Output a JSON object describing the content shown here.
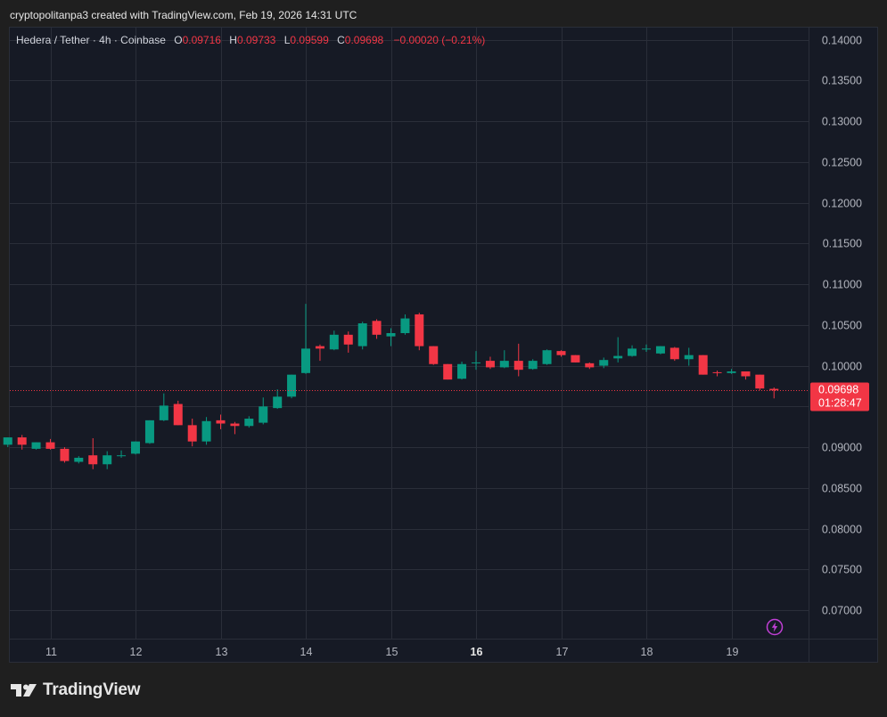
{
  "header": {
    "credit": "cryptopolitanpa3 created with TradingView.com, Feb 19, 2026 14:31 UTC"
  },
  "legend": {
    "symbol": "Hedera / Tether · 4h · Coinbase",
    "o_label": "O",
    "o": "0.09716",
    "h_label": "H",
    "h": "0.09733",
    "l_label": "L",
    "l": "0.09599",
    "c_label": "C",
    "c": "0.09698",
    "change": "−0.00020 (−0.21%)"
  },
  "price_tag": {
    "price": "0.09698",
    "countdown": "01:28:47"
  },
  "footer": {
    "brand": "TradingView"
  },
  "colors": {
    "up": "#089981",
    "down": "#f23645",
    "background": "#161a25",
    "grid": "#2a2e39"
  },
  "chart_data": {
    "type": "candlestick",
    "ylim": [
      0.0665,
      0.1415
    ],
    "y_ticks": [
      "0.07000",
      "0.07500",
      "0.08000",
      "0.08500",
      "0.09000",
      "0.09500",
      "0.10000",
      "0.10500",
      "0.11000",
      "0.11500",
      "0.12000",
      "0.12500",
      "0.13000",
      "0.13500",
      "0.14000"
    ],
    "x_ticks": [
      {
        "label": "11",
        "day": 11,
        "bold": false
      },
      {
        "label": "12",
        "day": 12,
        "bold": false
      },
      {
        "label": "13",
        "day": 13,
        "bold": false
      },
      {
        "label": "14",
        "day": 14,
        "bold": false
      },
      {
        "label": "15",
        "day": 15,
        "bold": false
      },
      {
        "label": "16",
        "day": 16,
        "bold": true
      },
      {
        "label": "17",
        "day": 17,
        "bold": false
      },
      {
        "label": "18",
        "day": 18,
        "bold": false
      },
      {
        "label": "19",
        "day": 19,
        "bold": false
      }
    ],
    "last_price": 0.09698,
    "candles": [
      {
        "t": "10.500",
        "o": 0.0903,
        "h": 0.0912,
        "l": 0.09,
        "c": 0.0912
      },
      {
        "t": "10.667",
        "o": 0.0912,
        "h": 0.0915,
        "l": 0.0897,
        "c": 0.0903
      },
      {
        "t": "10.833",
        "o": 0.0898,
        "h": 0.0906,
        "l": 0.0897,
        "c": 0.0906
      },
      {
        "t": "11.000",
        "o": 0.0906,
        "h": 0.091,
        "l": 0.0897,
        "c": 0.0898
      },
      {
        "t": "11.167",
        "o": 0.0898,
        "h": 0.09,
        "l": 0.0881,
        "c": 0.0883
      },
      {
        "t": "11.333",
        "o": 0.0882,
        "h": 0.0889,
        "l": 0.088,
        "c": 0.0887
      },
      {
        "t": "11.500",
        "o": 0.089,
        "h": 0.0911,
        "l": 0.0873,
        "c": 0.0879
      },
      {
        "t": "11.667",
        "o": 0.0879,
        "h": 0.0895,
        "l": 0.0873,
        "c": 0.089
      },
      {
        "t": "11.833",
        "o": 0.089,
        "h": 0.0896,
        "l": 0.0887,
        "c": 0.089
      },
      {
        "t": "12.000",
        "o": 0.0892,
        "h": 0.0907,
        "l": 0.0891,
        "c": 0.0907
      },
      {
        "t": "12.167",
        "o": 0.0905,
        "h": 0.0933,
        "l": 0.0904,
        "c": 0.0933
      },
      {
        "t": "12.333",
        "o": 0.0933,
        "h": 0.0966,
        "l": 0.0932,
        "c": 0.0951
      },
      {
        "t": "12.500",
        "o": 0.0953,
        "h": 0.0957,
        "l": 0.0927,
        "c": 0.0927
      },
      {
        "t": "12.667",
        "o": 0.0927,
        "h": 0.0935,
        "l": 0.0901,
        "c": 0.0907
      },
      {
        "t": "12.833",
        "o": 0.0907,
        "h": 0.0937,
        "l": 0.0903,
        "c": 0.0932
      },
      {
        "t": "13.000",
        "o": 0.0933,
        "h": 0.094,
        "l": 0.0922,
        "c": 0.0929
      },
      {
        "t": "13.167",
        "o": 0.0929,
        "h": 0.0931,
        "l": 0.0916,
        "c": 0.0926
      },
      {
        "t": "13.333",
        "o": 0.0926,
        "h": 0.0938,
        "l": 0.0924,
        "c": 0.0935
      },
      {
        "t": "13.500",
        "o": 0.093,
        "h": 0.0961,
        "l": 0.0928,
        "c": 0.095
      },
      {
        "t": "13.667",
        "o": 0.0948,
        "h": 0.0971,
        "l": 0.0947,
        "c": 0.0962
      },
      {
        "t": "13.833",
        "o": 0.0962,
        "h": 0.0989,
        "l": 0.096,
        "c": 0.0989
      },
      {
        "t": "14.000",
        "o": 0.0991,
        "h": 0.1076,
        "l": 0.099,
        "c": 0.1021
      },
      {
        "t": "14.167",
        "o": 0.1024,
        "h": 0.1026,
        "l": 0.1006,
        "c": 0.1021
      },
      {
        "t": "14.333",
        "o": 0.102,
        "h": 0.1043,
        "l": 0.1019,
        "c": 0.1038
      },
      {
        "t": "14.500",
        "o": 0.1038,
        "h": 0.1042,
        "l": 0.1016,
        "c": 0.1026
      },
      {
        "t": "14.667",
        "o": 0.1024,
        "h": 0.1054,
        "l": 0.102,
        "c": 0.1052
      },
      {
        "t": "14.833",
        "o": 0.1055,
        "h": 0.1057,
        "l": 0.1033,
        "c": 0.1038
      },
      {
        "t": "15.000",
        "o": 0.1036,
        "h": 0.1046,
        "l": 0.1024,
        "c": 0.104
      },
      {
        "t": "15.167",
        "o": 0.104,
        "h": 0.1063,
        "l": 0.1038,
        "c": 0.1058
      },
      {
        "t": "15.333",
        "o": 0.1063,
        "h": 0.1065,
        "l": 0.1019,
        "c": 0.1024
      },
      {
        "t": "15.500",
        "o": 0.1024,
        "h": 0.1024,
        "l": 0.1001,
        "c": 0.1002
      },
      {
        "t": "15.667",
        "o": 0.1002,
        "h": 0.1002,
        "l": 0.0983,
        "c": 0.0983
      },
      {
        "t": "15.833",
        "o": 0.0984,
        "h": 0.1005,
        "l": 0.0983,
        "c": 0.1002
      },
      {
        "t": "16.000",
        "o": 0.1003,
        "h": 0.1018,
        "l": 0.0995,
        "c": 0.1004
      },
      {
        "t": "16.167",
        "o": 0.1006,
        "h": 0.1011,
        "l": 0.0996,
        "c": 0.0998
      },
      {
        "t": "16.333",
        "o": 0.0998,
        "h": 0.1019,
        "l": 0.0997,
        "c": 0.1006
      },
      {
        "t": "16.500",
        "o": 0.1006,
        "h": 0.1027,
        "l": 0.0987,
        "c": 0.0995
      },
      {
        "t": "16.667",
        "o": 0.0996,
        "h": 0.1008,
        "l": 0.0995,
        "c": 0.1006
      },
      {
        "t": "16.833",
        "o": 0.1002,
        "h": 0.102,
        "l": 0.1001,
        "c": 0.1019
      },
      {
        "t": "17.000",
        "o": 0.1018,
        "h": 0.1019,
        "l": 0.1011,
        "c": 0.1013
      },
      {
        "t": "17.167",
        "o": 0.1013,
        "h": 0.1013,
        "l": 0.1004,
        "c": 0.1004
      },
      {
        "t": "17.333",
        "o": 0.1003,
        "h": 0.1004,
        "l": 0.0996,
        "c": 0.0998
      },
      {
        "t": "17.500",
        "o": 0.1,
        "h": 0.101,
        "l": 0.0997,
        "c": 0.1007
      },
      {
        "t": "17.667",
        "o": 0.1009,
        "h": 0.1035,
        "l": 0.1004,
        "c": 0.1012
      },
      {
        "t": "17.833",
        "o": 0.1012,
        "h": 0.1025,
        "l": 0.1011,
        "c": 0.1021
      },
      {
        "t": "18.000",
        "o": 0.1021,
        "h": 0.1026,
        "l": 0.1017,
        "c": 0.1021
      },
      {
        "t": "18.167",
        "o": 0.1015,
        "h": 0.1024,
        "l": 0.1014,
        "c": 0.1024
      },
      {
        "t": "18.333",
        "o": 0.1022,
        "h": 0.1023,
        "l": 0.1006,
        "c": 0.1008
      },
      {
        "t": "18.500",
        "o": 0.1008,
        "h": 0.1022,
        "l": 0.1,
        "c": 0.1013
      },
      {
        "t": "18.667",
        "o": 0.1013,
        "h": 0.1013,
        "l": 0.0989,
        "c": 0.0989
      },
      {
        "t": "18.833",
        "o": 0.0992,
        "h": 0.0994,
        "l": 0.0987,
        "c": 0.0991
      },
      {
        "t": "19.000",
        "o": 0.0991,
        "h": 0.0996,
        "l": 0.099,
        "c": 0.0993
      },
      {
        "t": "19.167",
        "o": 0.0993,
        "h": 0.0993,
        "l": 0.0983,
        "c": 0.0987
      },
      {
        "t": "19.333",
        "o": 0.0989,
        "h": 0.0989,
        "l": 0.097,
        "c": 0.0972
      },
      {
        "t": "19.500",
        "o": 0.09716,
        "h": 0.09733,
        "l": 0.09599,
        "c": 0.09698
      }
    ]
  }
}
